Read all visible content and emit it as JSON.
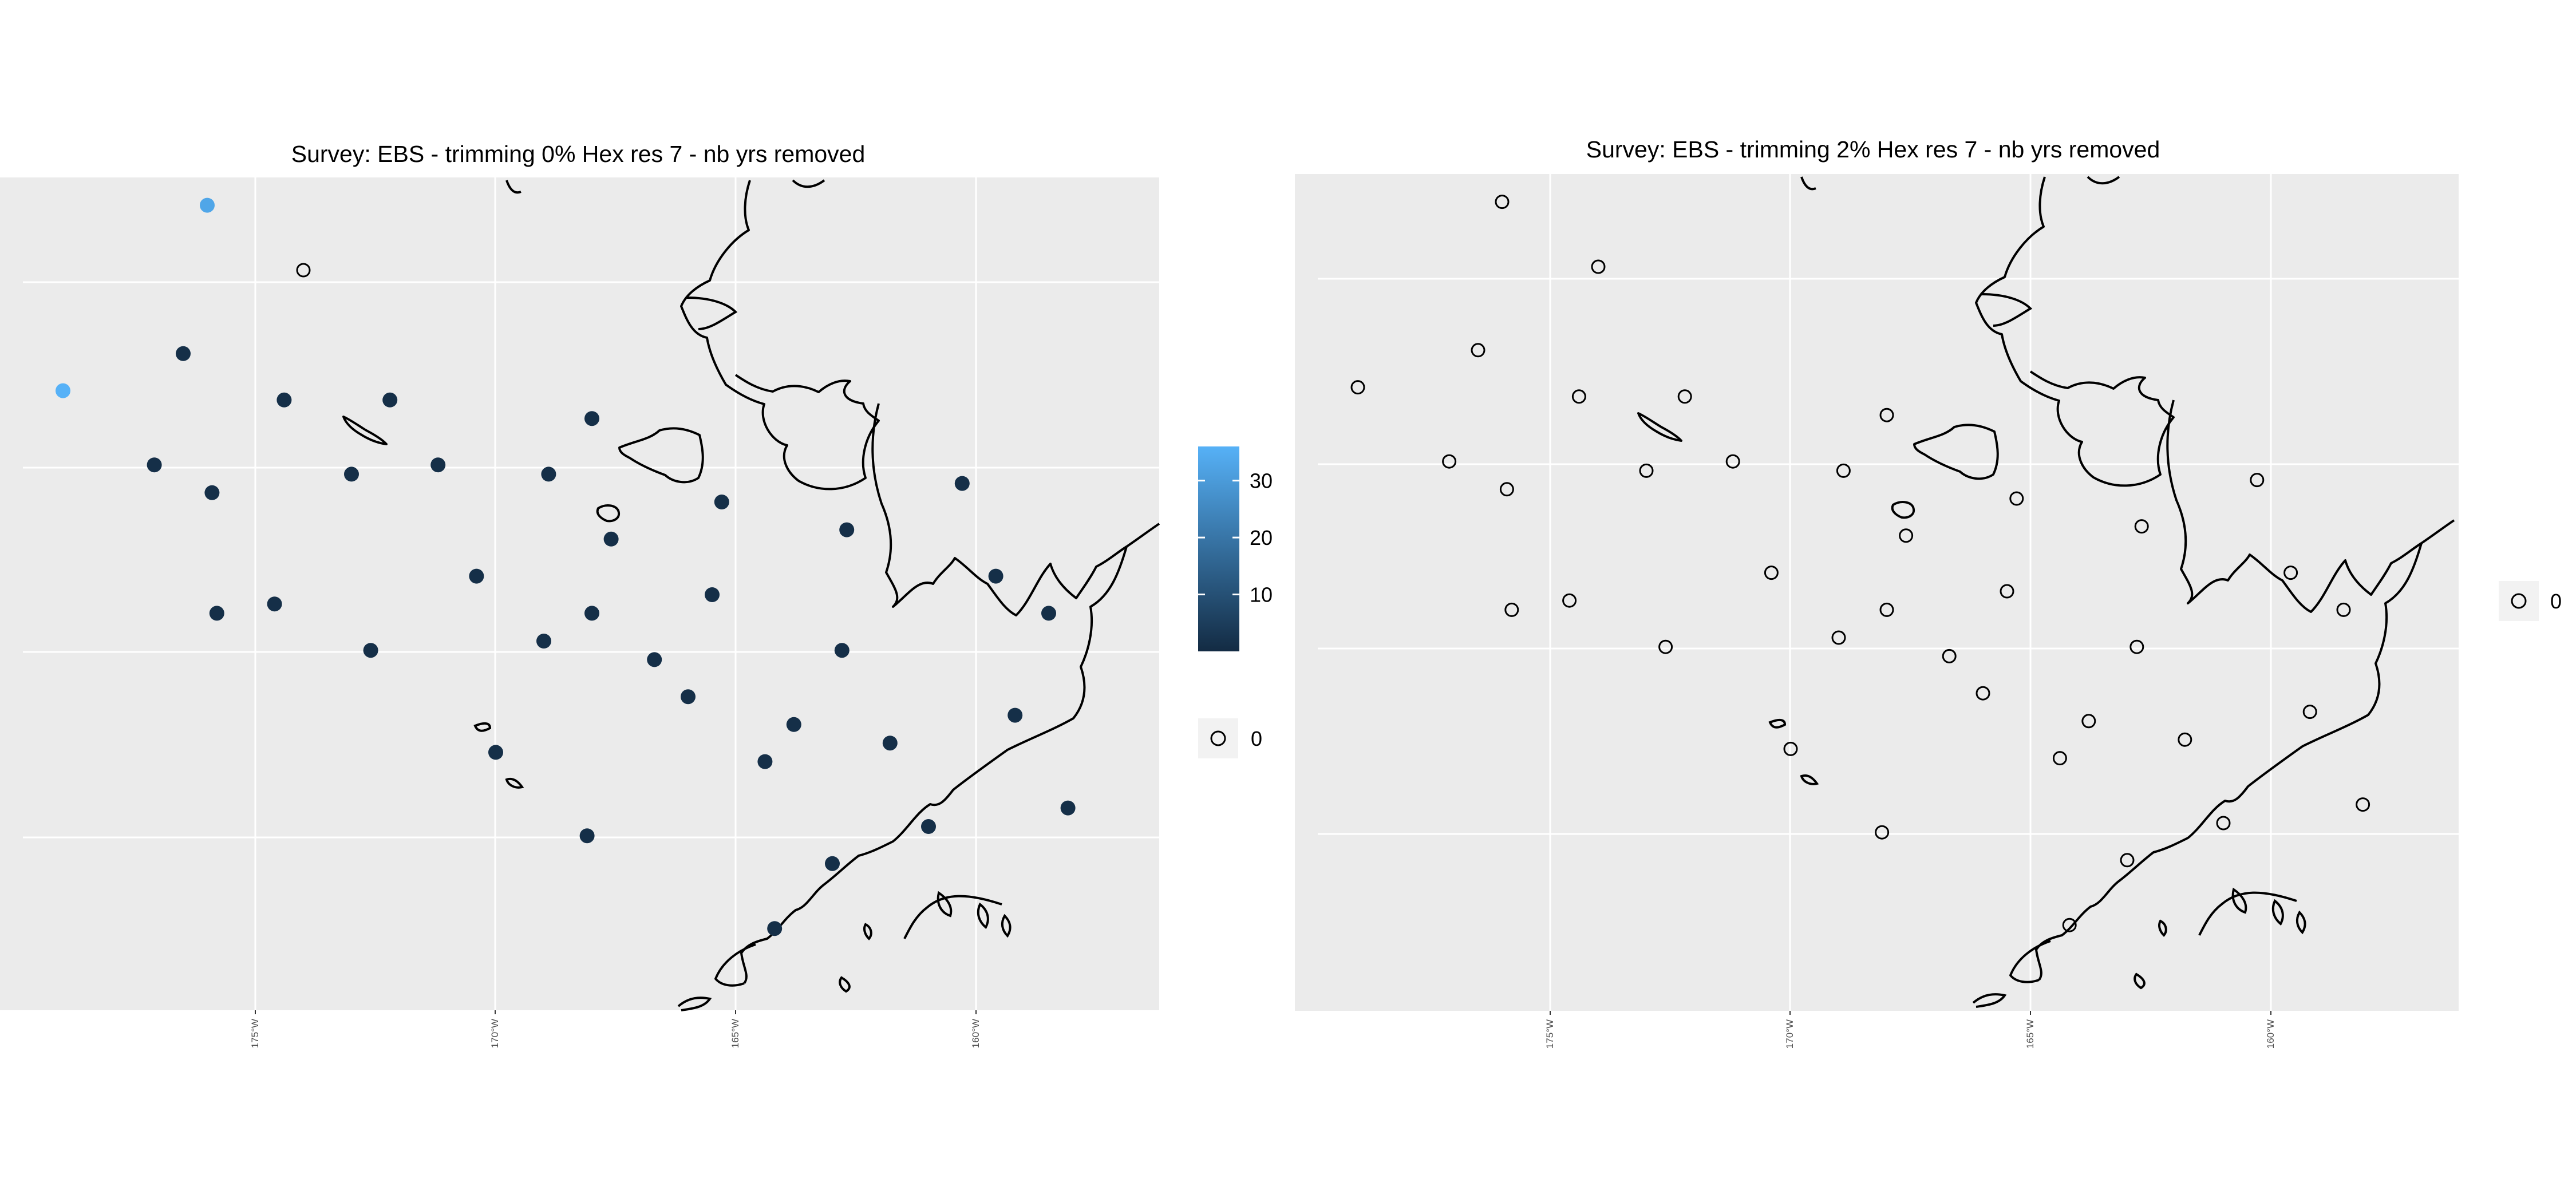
{
  "chart_data": {
    "type": "map",
    "value_range": [
      0,
      36
    ],
    "color_scale": {
      "low": "#132B43",
      "high": "#56B1F7",
      "breaks": [
        10,
        20,
        30
      ]
    },
    "zero_legend_label": "0",
    "x_tick_labels": [
      "175°W",
      "170°W",
      "165°W",
      "160°W"
    ],
    "panels": [
      {
        "title": "Survey: EBS - trimming 0% Hex res 7 - nb yrs removed",
        "has_colorbar": true,
        "points": [
          {
            "lon": -179.0,
            "lat": 62.2,
            "value": 36
          },
          {
            "lon": -176.0,
            "lat": 64.2,
            "value": 33
          },
          {
            "lon": -174.0,
            "lat": 63.5,
            "value": 0
          },
          {
            "lon": -176.5,
            "lat": 62.6,
            "value": 1
          },
          {
            "lon": -177.1,
            "lat": 61.4,
            "value": 1
          },
          {
            "lon": -174.4,
            "lat": 62.1,
            "value": 1
          },
          {
            "lon": -175.9,
            "lat": 61.1,
            "value": 1
          },
          {
            "lon": -172.2,
            "lat": 62.1,
            "value": 1
          },
          {
            "lon": -173.0,
            "lat": 61.3,
            "value": 1
          },
          {
            "lon": -171.2,
            "lat": 61.4,
            "value": 1
          },
          {
            "lon": -168.0,
            "lat": 61.9,
            "value": 1
          },
          {
            "lon": -168.9,
            "lat": 61.3,
            "value": 1
          },
          {
            "lon": -167.6,
            "lat": 60.6,
            "value": 1
          },
          {
            "lon": -165.3,
            "lat": 61.0,
            "value": 1
          },
          {
            "lon": -162.7,
            "lat": 60.7,
            "value": 1
          },
          {
            "lon": -160.3,
            "lat": 61.2,
            "value": 1
          },
          {
            "lon": -174.6,
            "lat": 59.9,
            "value": 1
          },
          {
            "lon": -170.4,
            "lat": 60.2,
            "value": 1
          },
          {
            "lon": -168.0,
            "lat": 59.8,
            "value": 1
          },
          {
            "lon": -165.5,
            "lat": 60.0,
            "value": 1
          },
          {
            "lon": -159.6,
            "lat": 60.2,
            "value": 1
          },
          {
            "lon": -158.5,
            "lat": 59.8,
            "value": 1
          },
          {
            "lon": -162.8,
            "lat": 59.4,
            "value": 1
          },
          {
            "lon": -172.6,
            "lat": 59.4,
            "value": 1
          },
          {
            "lon": -166.7,
            "lat": 59.3,
            "value": 1
          },
          {
            "lon": -175.8,
            "lat": 59.8,
            "value": 1
          },
          {
            "lon": -169.0,
            "lat": 59.5,
            "value": 1
          },
          {
            "lon": -166.0,
            "lat": 58.9,
            "value": 1
          },
          {
            "lon": -163.8,
            "lat": 58.6,
            "value": 1
          },
          {
            "lon": -161.8,
            "lat": 58.4,
            "value": 1
          },
          {
            "lon": -164.4,
            "lat": 58.2,
            "value": 1
          },
          {
            "lon": -159.2,
            "lat": 58.7,
            "value": 1
          },
          {
            "lon": -170.0,
            "lat": 58.3,
            "value": 1
          },
          {
            "lon": -168.1,
            "lat": 57.4,
            "value": 1
          },
          {
            "lon": -161.0,
            "lat": 57.5,
            "value": 1
          },
          {
            "lon": -163.0,
            "lat": 57.1,
            "value": 1
          },
          {
            "lon": -164.2,
            "lat": 56.4,
            "value": 1
          },
          {
            "lon": -158.1,
            "lat": 57.7,
            "value": 1
          }
        ]
      },
      {
        "title": "Survey: EBS - trimming 2% Hex res 7 - nb yrs removed",
        "has_colorbar": false,
        "points": [
          {
            "lon": -179.0,
            "lat": 62.2,
            "value": 0
          },
          {
            "lon": -176.0,
            "lat": 64.2,
            "value": 0
          },
          {
            "lon": -174.0,
            "lat": 63.5,
            "value": 0
          },
          {
            "lon": -176.5,
            "lat": 62.6,
            "value": 0
          },
          {
            "lon": -177.1,
            "lat": 61.4,
            "value": 0
          },
          {
            "lon": -174.4,
            "lat": 62.1,
            "value": 0
          },
          {
            "lon": -175.9,
            "lat": 61.1,
            "value": 0
          },
          {
            "lon": -172.2,
            "lat": 62.1,
            "value": 0
          },
          {
            "lon": -173.0,
            "lat": 61.3,
            "value": 0
          },
          {
            "lon": -171.2,
            "lat": 61.4,
            "value": 0
          },
          {
            "lon": -168.0,
            "lat": 61.9,
            "value": 0
          },
          {
            "lon": -168.9,
            "lat": 61.3,
            "value": 0
          },
          {
            "lon": -167.6,
            "lat": 60.6,
            "value": 0
          },
          {
            "lon": -165.3,
            "lat": 61.0,
            "value": 0
          },
          {
            "lon": -162.7,
            "lat": 60.7,
            "value": 0
          },
          {
            "lon": -160.3,
            "lat": 61.2,
            "value": 0
          },
          {
            "lon": -174.6,
            "lat": 59.9,
            "value": 0
          },
          {
            "lon": -170.4,
            "lat": 60.2,
            "value": 0
          },
          {
            "lon": -168.0,
            "lat": 59.8,
            "value": 0
          },
          {
            "lon": -165.5,
            "lat": 60.0,
            "value": 0
          },
          {
            "lon": -159.6,
            "lat": 60.2,
            "value": 0
          },
          {
            "lon": -158.5,
            "lat": 59.8,
            "value": 0
          },
          {
            "lon": -162.8,
            "lat": 59.4,
            "value": 0
          },
          {
            "lon": -172.6,
            "lat": 59.4,
            "value": 0
          },
          {
            "lon": -166.7,
            "lat": 59.3,
            "value": 0
          },
          {
            "lon": -175.8,
            "lat": 59.8,
            "value": 0
          },
          {
            "lon": -169.0,
            "lat": 59.5,
            "value": 0
          },
          {
            "lon": -166.0,
            "lat": 58.9,
            "value": 0
          },
          {
            "lon": -163.8,
            "lat": 58.6,
            "value": 0
          },
          {
            "lon": -161.8,
            "lat": 58.4,
            "value": 0
          },
          {
            "lon": -164.4,
            "lat": 58.2,
            "value": 0
          },
          {
            "lon": -159.2,
            "lat": 58.7,
            "value": 0
          },
          {
            "lon": -170.0,
            "lat": 58.3,
            "value": 0
          },
          {
            "lon": -168.1,
            "lat": 57.4,
            "value": 0
          },
          {
            "lon": -161.0,
            "lat": 57.5,
            "value": 0
          },
          {
            "lon": -163.0,
            "lat": 57.1,
            "value": 0
          },
          {
            "lon": -164.2,
            "lat": 56.4,
            "value": 0
          },
          {
            "lon": -158.1,
            "lat": 57.7,
            "value": 0
          }
        ]
      }
    ]
  }
}
